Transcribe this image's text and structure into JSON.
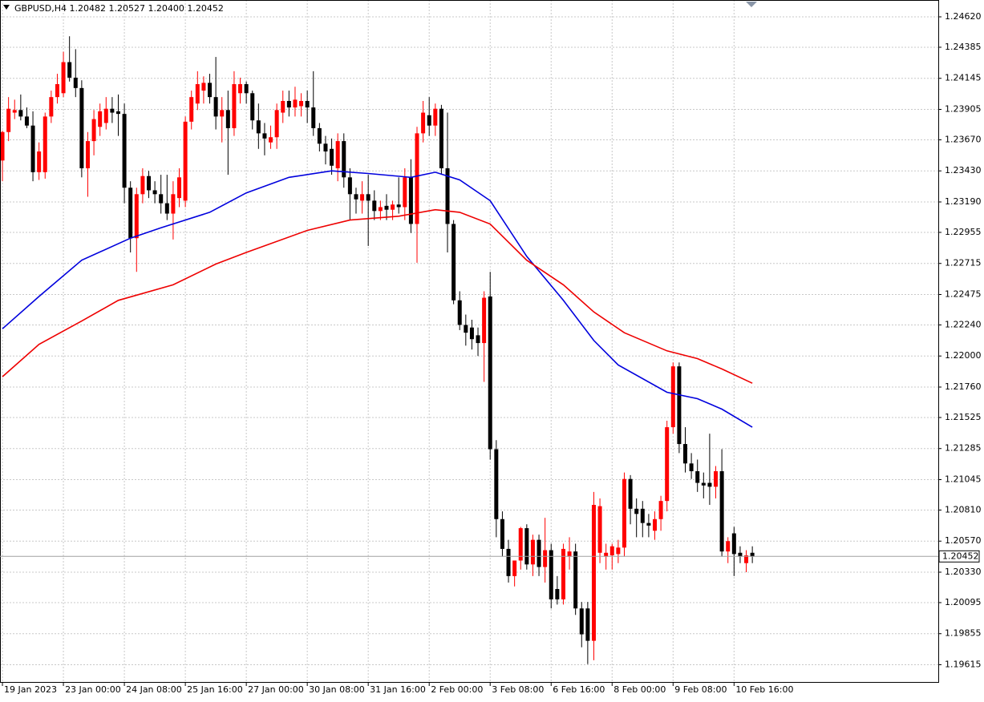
{
  "chart_data": {
    "type": "candlestick",
    "title": "GBPUSD,H4  1.20482 1.20527 1.20400 1.20452",
    "up_color": "#ff0000",
    "down_color": "#000000",
    "grid": true,
    "xlim": [
      -0.4,
      153.5
    ],
    "ylim": [
      1.19482,
      1.2475
    ],
    "xticks": [
      {
        "value": 0,
        "label": "19 Jan 2023"
      },
      {
        "value": 10,
        "label": "23 Jan 00:00"
      },
      {
        "value": 20,
        "label": "24 Jan 08:00"
      },
      {
        "value": 30,
        "label": "25 Jan 16:00"
      },
      {
        "value": 40,
        "label": "27 Jan 00:00"
      },
      {
        "value": 50,
        "label": "30 Jan 08:00"
      },
      {
        "value": 60,
        "label": "31 Jan 16:00"
      },
      {
        "value": 70,
        "label": "2 Feb 00:00"
      },
      {
        "value": 80,
        "label": "3 Feb 08:00"
      },
      {
        "value": 90,
        "label": "6 Feb 16:00"
      },
      {
        "value": 100,
        "label": "8 Feb 00:00"
      },
      {
        "value": 110,
        "label": "9 Feb 08:00"
      },
      {
        "value": 120,
        "label": "10 Feb 16:00"
      }
    ],
    "yticks": [
      {
        "value": 1.2462,
        "label": "1.24620"
      },
      1.24385,
      1.24145,
      1.23905,
      {
        "value": 1.2367,
        "label": "1.23670"
      },
      {
        "value": 1.2343,
        "label": "1.23430"
      },
      {
        "value": 1.2319,
        "label": "1.23190"
      },
      1.22955,
      1.22715,
      1.22475,
      {
        "value": 1.2224,
        "label": "1.22240"
      },
      {
        "value": 1.22,
        "label": "1.22000"
      },
      {
        "value": 1.2176,
        "label": "1.21760"
      },
      1.21525,
      1.21285,
      1.21045,
      {
        "value": 1.2081,
        "label": "1.20810"
      },
      {
        "value": 1.2057,
        "label": "1.20570"
      },
      {
        "value": 1.2033,
        "label": "1.20330"
      },
      1.20095,
      1.19855,
      1.19615
    ],
    "last_price": 1.20452,
    "candles": [
      [
        1.2351,
        1.2374,
        1.2335,
        1.2373
      ],
      [
        1.2373,
        1.24,
        1.2366,
        1.2391
      ],
      [
        1.2388,
        1.2398,
        1.2383,
        1.239
      ],
      [
        1.239,
        1.2402,
        1.2382,
        1.2385
      ],
      [
        1.2385,
        1.2392,
        1.2376,
        1.2378
      ],
      [
        1.2378,
        1.2389,
        1.2335,
        1.2342
      ],
      [
        1.2342,
        1.2365,
        1.2336,
        1.2358
      ],
      [
        1.2342,
        1.2388,
        1.2337,
        1.2385
      ],
      [
        1.2385,
        1.2405,
        1.238,
        1.24
      ],
      [
        1.24,
        1.2418,
        1.2395,
        1.241
      ],
      [
        1.2403,
        1.2435,
        1.24,
        1.2427
      ],
      [
        1.2427,
        1.2447,
        1.2412,
        1.2415
      ],
      [
        1.2415,
        1.2437,
        1.24,
        1.2407
      ],
      [
        1.2407,
        1.2413,
        1.2338,
        1.2345
      ],
      [
        1.2345,
        1.2373,
        1.2323,
        1.2366
      ],
      [
        1.2366,
        1.239,
        1.2355,
        1.2383
      ],
      [
        1.2377,
        1.2395,
        1.237,
        1.2389
      ],
      [
        1.238,
        1.24,
        1.2375,
        1.2391
      ],
      [
        1.2391,
        1.24,
        1.238,
        1.2388
      ],
      [
        1.2389,
        1.2402,
        1.237,
        1.2387
      ],
      [
        1.2387,
        1.2395,
        1.2318,
        1.233
      ],
      [
        1.233,
        1.2335,
        1.228,
        1.2291
      ],
      [
        1.2291,
        1.233,
        1.2265,
        1.2325
      ],
      [
        1.2325,
        1.2345,
        1.2318,
        1.2339
      ],
      [
        1.2339,
        1.2343,
        1.2322,
        1.2328
      ],
      [
        1.2328,
        1.2335,
        1.2318,
        1.2325
      ],
      [
        1.2325,
        1.234,
        1.231,
        1.2318
      ],
      [
        1.2318,
        1.234,
        1.2305,
        1.231
      ],
      [
        1.231,
        1.2335,
        1.229,
        1.2325
      ],
      [
        1.2322,
        1.2345,
        1.2315,
        1.2338
      ],
      [
        1.232,
        1.2385,
        1.2315,
        1.2381
      ],
      [
        1.2381,
        1.2405,
        1.2375,
        1.24
      ],
      [
        1.2395,
        1.242,
        1.239,
        1.241
      ],
      [
        1.2405,
        1.2416,
        1.2395,
        1.2411
      ],
      [
        1.2411,
        1.2418,
        1.2395,
        1.24
      ],
      [
        1.24,
        1.2431,
        1.2375,
        1.2385
      ],
      [
        1.2385,
        1.24,
        1.2365,
        1.239
      ],
      [
        1.239,
        1.2405,
        1.234,
        1.2376
      ],
      [
        1.2376,
        1.242,
        1.237,
        1.241
      ],
      [
        1.2403,
        1.2415,
        1.2395,
        1.241
      ],
      [
        1.241,
        1.2412,
        1.2395,
        1.2403
      ],
      [
        1.2403,
        1.2405,
        1.2375,
        1.2382
      ],
      [
        1.2382,
        1.2395,
        1.236,
        1.2372
      ],
      [
        1.2372,
        1.238,
        1.2355,
        1.2368
      ],
      [
        1.2365,
        1.2378,
        1.236,
        1.2369
      ],
      [
        1.2369,
        1.2395,
        1.236,
        1.239
      ],
      [
        1.2388,
        1.2405,
        1.238,
        1.2397
      ],
      [
        1.2397,
        1.2405,
        1.2385,
        1.2392
      ],
      [
        1.2392,
        1.2408,
        1.2385,
        1.2398
      ],
      [
        1.2393,
        1.2403,
        1.2385,
        1.2397
      ],
      [
        1.2397,
        1.2405,
        1.238,
        1.2392
      ],
      [
        1.2392,
        1.242,
        1.237,
        1.2376
      ],
      [
        1.2376,
        1.238,
        1.2358,
        1.2364
      ],
      [
        1.2364,
        1.237,
        1.2348,
        1.2358
      ],
      [
        1.236,
        1.2368,
        1.234,
        1.2347
      ],
      [
        1.2345,
        1.2372,
        1.2335,
        1.2366
      ],
      [
        1.2366,
        1.2372,
        1.233,
        1.2338
      ],
      [
        1.2338,
        1.2345,
        1.2305,
        1.2325
      ],
      [
        1.2325,
        1.233,
        1.231,
        1.2321
      ],
      [
        1.232,
        1.2335,
        1.231,
        1.2325
      ],
      [
        1.2325,
        1.234,
        1.2285,
        1.232
      ],
      [
        1.232,
        1.2328,
        1.2305,
        1.2312
      ],
      [
        1.2312,
        1.232,
        1.2305,
        1.2315
      ],
      [
        1.2316,
        1.2325,
        1.2305,
        1.2313
      ],
      [
        1.2313,
        1.232,
        1.2305,
        1.2317
      ],
      [
        1.2317,
        1.2338,
        1.231,
        1.2315
      ],
      [
        1.2315,
        1.2345,
        1.2305,
        1.2338
      ],
      [
        1.2338,
        1.2352,
        1.2295,
        1.2302
      ],
      [
        1.2302,
        1.2377,
        1.2272,
        1.2372
      ],
      [
        1.2372,
        1.2397,
        1.2365,
        1.2388
      ],
      [
        1.2386,
        1.24,
        1.237,
        1.2378
      ],
      [
        1.2378,
        1.2395,
        1.237,
        1.2391
      ],
      [
        1.2391,
        1.2394,
        1.234,
        1.2345
      ],
      [
        1.2345,
        1.2388,
        1.228,
        1.2302
      ],
      [
        1.2302,
        1.2305,
        1.224,
        1.2243
      ],
      [
        1.2243,
        1.225,
        1.222,
        1.2224
      ],
      [
        1.2224,
        1.2232,
        1.2208,
        1.2218
      ],
      [
        1.2222,
        1.2228,
        1.2205,
        1.2213
      ],
      [
        1.2216,
        1.2222,
        1.22,
        1.221
      ],
      [
        1.221,
        1.225,
        1.218,
        1.2245
      ],
      [
        1.2246,
        1.2265,
        1.212,
        1.2128
      ],
      [
        1.2128,
        1.2135,
        1.206,
        1.2074
      ],
      [
        1.2074,
        1.208,
        1.2045,
        1.2051
      ],
      [
        1.2051,
        1.2058,
        1.2025,
        1.203
      ],
      [
        1.203,
        1.2042,
        1.2022,
        1.2042
      ],
      [
        1.2042,
        1.2068,
        1.2035,
        1.2067
      ],
      [
        1.2067,
        1.207,
        1.2035,
        1.2039
      ],
      [
        1.2039,
        1.2062,
        1.203,
        1.2058
      ],
      [
        1.2058,
        1.2062,
        1.203,
        1.2037
      ],
      [
        1.2037,
        1.2075,
        1.2025,
        1.205
      ],
      [
        1.205,
        1.2055,
        1.2005,
        1.2012
      ],
      [
        1.202,
        1.203,
        1.2008,
        1.2012
      ],
      [
        1.2012,
        1.2055,
        1.2008,
        1.2051
      ],
      [
        1.2045,
        1.206,
        1.2035,
        1.2049
      ],
      [
        1.2049,
        1.2055,
        1.2,
        1.2005
      ],
      [
        1.2005,
        1.201,
        1.1975,
        1.1985
      ],
      [
        1.2005,
        1.201,
        1.1962,
        1.198
      ],
      [
        1.198,
        1.2095,
        1.1965,
        1.2085
      ],
      [
        1.2048,
        1.209,
        1.204,
        1.2084
      ],
      [
        1.2045,
        1.2055,
        1.2035,
        1.2048
      ],
      [
        1.2046,
        1.2055,
        1.2035,
        1.2053
      ],
      [
        1.2047,
        1.2058,
        1.204,
        1.2052
      ],
      [
        1.2052,
        1.211,
        1.2045,
        1.2105
      ],
      [
        1.2105,
        1.2108,
        1.207,
        1.2082
      ],
      [
        1.2082,
        1.209,
        1.206,
        1.2078
      ],
      [
        1.2082,
        1.2088,
        1.206,
        1.2071
      ],
      [
        1.2071,
        1.2078,
        1.206,
        1.2069
      ],
      [
        1.2065,
        1.208,
        1.2058,
        1.2074
      ],
      [
        1.2074,
        1.2092,
        1.2065,
        1.2088
      ],
      [
        1.2088,
        1.215,
        1.208,
        1.2145
      ],
      [
        1.2145,
        1.2195,
        1.214,
        1.2192
      ],
      [
        1.2192,
        1.2195,
        1.2125,
        1.2132
      ],
      [
        1.2132,
        1.2145,
        1.211,
        1.2117
      ],
      [
        1.2117,
        1.2125,
        1.2105,
        1.2111
      ],
      [
        1.2111,
        1.212,
        1.2095,
        1.2102
      ],
      [
        1.2102,
        1.211,
        1.209,
        1.21
      ],
      [
        1.2102,
        1.214,
        1.2085,
        1.2099
      ],
      [
        1.2099,
        1.2115,
        1.209,
        1.2111
      ],
      [
        1.2111,
        1.2128,
        1.2045,
        1.2049
      ],
      [
        1.2049,
        1.206,
        1.204,
        1.2057
      ],
      [
        1.2063,
        1.2068,
        1.203,
        1.2047
      ],
      [
        1.2048,
        1.2053,
        1.204,
        1.2045
      ],
      [
        1.204,
        1.205,
        1.2033,
        1.2046
      ],
      [
        1.2048,
        1.2053,
        1.204,
        1.2045
      ]
    ],
    "ma_lines": [
      {
        "color": "#0000dd",
        "x": [
          0,
          6,
          13,
          21,
          26,
          34,
          40,
          47,
          54,
          60,
          67,
          71,
          75,
          80,
          86,
          92,
          97,
          101,
          109,
          114,
          118,
          123
        ],
        "values": [
          1.2221,
          1.2246,
          1.2274,
          1.2291,
          1.2299,
          1.2311,
          1.2326,
          1.2338,
          1.2343,
          1.2341,
          1.2338,
          1.2342,
          1.2336,
          1.232,
          1.2277,
          1.2243,
          1.2212,
          1.2193,
          1.2172,
          1.2167,
          1.2159,
          1.2145
        ]
      },
      {
        "color": "#ee0000",
        "x": [
          0,
          6,
          13,
          19,
          28,
          35,
          40,
          50,
          57,
          65,
          71,
          75,
          80,
          86,
          92,
          97,
          102,
          109,
          114,
          118,
          123
        ],
        "values": [
          1.2184,
          1.2209,
          1.2227,
          1.2243,
          1.2255,
          1.2271,
          1.228,
          1.2297,
          1.2305,
          1.2308,
          1.2313,
          1.2311,
          1.2302,
          1.2274,
          1.2255,
          1.2234,
          1.2218,
          1.2204,
          1.2198,
          1.219,
          1.2179
        ]
      }
    ]
  }
}
